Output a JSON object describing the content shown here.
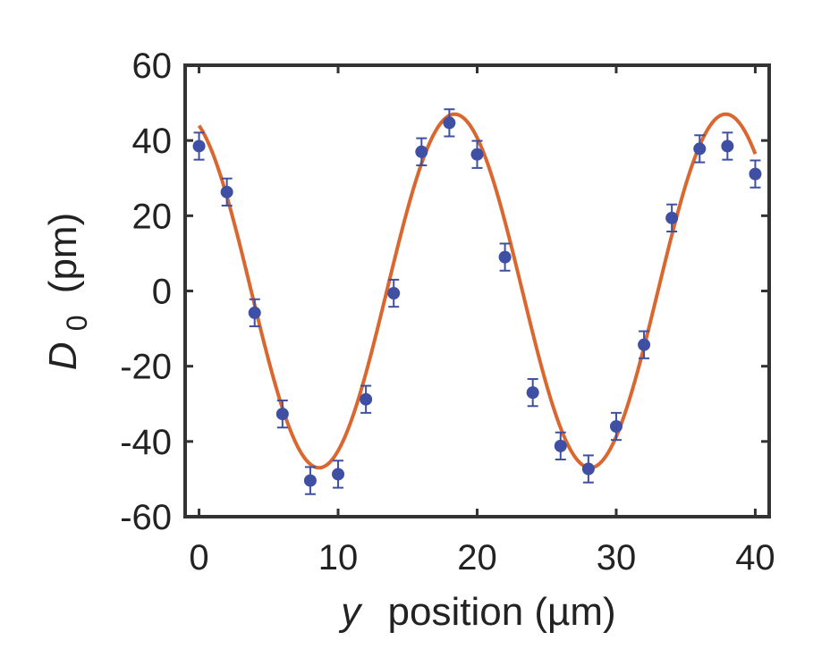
{
  "chart_data": {
    "type": "scatter",
    "xlabel_var": "y",
    "xlabel_rest": "position (µm)",
    "ylabel_var": "D",
    "ylabel_sub": "0",
    "ylabel_rest": "(pm)",
    "xlim": [
      -1,
      41
    ],
    "ylim": [
      -60,
      60
    ],
    "xticks": [
      0,
      10,
      20,
      30,
      40
    ],
    "yticks": [
      -60,
      -40,
      -20,
      0,
      20,
      40,
      60
    ],
    "grid": false,
    "colors": {
      "points": "#3f4fa3",
      "fit": "#d9672f",
      "axes": "#333333"
    },
    "series": [
      {
        "kind": "points_with_errorbars",
        "x": [
          0,
          2,
          4,
          6,
          8,
          10,
          12,
          14,
          16,
          18,
          20,
          22,
          24,
          26,
          28,
          30,
          32,
          34,
          36,
          38,
          40
        ],
        "y": [
          38.5,
          26.3,
          -5.8,
          -32.7,
          -50.4,
          -48.7,
          -28.8,
          -0.6,
          37.0,
          44.7,
          36.3,
          9.0,
          -27.0,
          -41.2,
          -47.3,
          -36.0,
          -14.3,
          19.4,
          37.8,
          38.5,
          31.1
        ],
        "err": [
          3.6,
          3.6,
          3.6,
          3.6,
          3.6,
          3.6,
          3.6,
          3.6,
          3.6,
          3.6,
          3.6,
          3.6,
          3.6,
          3.6,
          3.6,
          3.6,
          3.6,
          3.6,
          3.6,
          3.6,
          3.6
        ]
      },
      {
        "kind": "fit_curve",
        "function": "sine",
        "amplitude": 47,
        "period": 19.5,
        "phase": 0.362,
        "x_range": [
          0,
          40
        ]
      }
    ]
  }
}
